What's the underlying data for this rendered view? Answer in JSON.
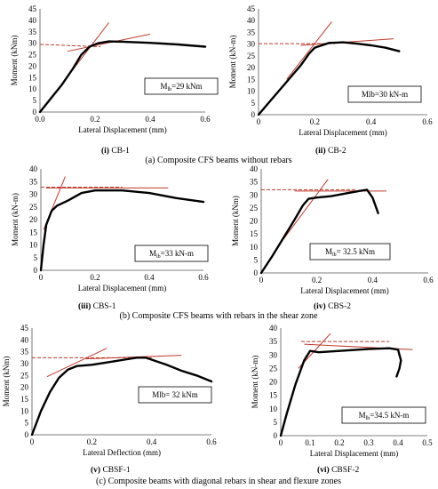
{
  "colors": {
    "curve": "#000000",
    "tangent": "#c0392b",
    "axis": "#555555",
    "grid_text": "#000000"
  },
  "row_captions": [
    "(a) Composite CFS beams without rebars",
    "(b) Composite CFS beams with rebars in the shear zone",
    "(c) Composite beams with diagonal rebars in shear and flexure zones"
  ],
  "chart_data": [
    {
      "type": "line",
      "caption": "(i) CB-1",
      "xlabel": "Lateral Displacement (mm)",
      "ylabel": "Moment (kNm)",
      "xlim": [
        0,
        0.6
      ],
      "ylim": [
        0,
        45
      ],
      "xticks": [
        "0.0",
        "0.2",
        "0.4",
        "0.6"
      ],
      "xtick_values": [
        0,
        0.2,
        0.4,
        0.6
      ],
      "yticks": [
        "0",
        "5",
        "10",
        "15",
        "20",
        "25",
        "30",
        "35",
        "40",
        "45"
      ],
      "ytick_values": [
        0,
        5,
        10,
        15,
        20,
        25,
        30,
        35,
        40,
        45
      ],
      "annotation": "M_lb=29 kNm",
      "curve": {
        "x": [
          0,
          0.04,
          0.08,
          0.12,
          0.15,
          0.18,
          0.21,
          0.25,
          0.3,
          0.4,
          0.5,
          0.6
        ],
        "y": [
          0,
          6,
          12,
          19,
          25,
          28.5,
          30,
          30.8,
          30.7,
          30.2,
          29.5,
          28.5
        ]
      },
      "tangent_lines": [
        {
          "x": [
            0.04,
            0.25
          ],
          "y": [
            6,
            39
          ],
          "style": "solid"
        },
        {
          "x": [
            0.1,
            0.4
          ],
          "y": [
            26.5,
            34
          ],
          "style": "solid"
        },
        {
          "x": [
            0,
            0.22
          ],
          "y": [
            29.5,
            28.5
          ],
          "style": "dashed"
        }
      ]
    },
    {
      "type": "line",
      "caption": "(ii) CB-2",
      "xlabel": "Lateral Displacement (mm)",
      "ylabel": "Moment (kN-m)",
      "xlim": [
        0,
        0.6
      ],
      "ylim": [
        0,
        45
      ],
      "xticks": [
        "0",
        "0.2",
        "0.4",
        "0.6"
      ],
      "xtick_values": [
        0,
        0.2,
        0.4,
        0.6
      ],
      "yticks": [
        "0",
        "5",
        "10",
        "15",
        "20",
        "25",
        "30",
        "35",
        "40",
        "45"
      ],
      "ytick_values": [
        0,
        5,
        10,
        15,
        20,
        25,
        30,
        35,
        40,
        45
      ],
      "annotation": "Mlb=30 kN-m",
      "curve": {
        "x": [
          0,
          0.05,
          0.1,
          0.15,
          0.18,
          0.2,
          0.25,
          0.3,
          0.35,
          0.4,
          0.45,
          0.5
        ],
        "y": [
          0,
          7,
          14,
          21,
          26,
          28.5,
          30.5,
          30.8,
          30.2,
          29.5,
          28.5,
          27
        ]
      },
      "tangent_lines": [
        {
          "x": [
            0.1,
            0.26
          ],
          "y": [
            15,
            39.5
          ],
          "style": "solid"
        },
        {
          "x": [
            0.15,
            0.48
          ],
          "y": [
            29.5,
            32.3
          ],
          "style": "solid"
        },
        {
          "x": [
            0,
            0.27
          ],
          "y": [
            30.2,
            30.2
          ],
          "style": "dashed"
        }
      ]
    },
    {
      "type": "line",
      "caption": "(iii) CBS-1",
      "xlabel": "Lateral Displacement (mm)",
      "ylabel": "Moment (kN-m)",
      "xlim": [
        0,
        0.6
      ],
      "ylim": [
        0,
        40
      ],
      "xticks": [
        "0",
        "0.2",
        "0.4",
        "0.6"
      ],
      "xtick_values": [
        0,
        0.2,
        0.4,
        0.6
      ],
      "yticks": [
        "0",
        "5",
        "10",
        "15",
        "20",
        "25",
        "30",
        "35",
        "40"
      ],
      "ytick_values": [
        0,
        5,
        10,
        15,
        20,
        25,
        30,
        35,
        40
      ],
      "annotation": "M_lb=33 kN-m",
      "curve": {
        "x": [
          0,
          0.01,
          0.02,
          0.04,
          0.06,
          0.1,
          0.15,
          0.2,
          0.3,
          0.4,
          0.5,
          0.6
        ],
        "y": [
          0,
          10,
          18,
          23.5,
          25.5,
          27.5,
          30.5,
          31.5,
          31.5,
          30.5,
          28.5,
          27
        ]
      },
      "tangent_lines": [
        {
          "x": [
            0.01,
            0.09
          ],
          "y": [
            16,
            37
          ],
          "style": "solid"
        },
        {
          "x": [
            0.02,
            0.47
          ],
          "y": [
            32.5,
            32.5
          ],
          "style": "solid"
        },
        {
          "x": [
            0,
            0.3
          ],
          "y": [
            32.8,
            32.8
          ],
          "style": "dashed"
        }
      ]
    },
    {
      "type": "line",
      "caption": "(iv) CBS-2",
      "xlabel": "Lateral Displacement (mm)",
      "ylabel": "Moment (kNm)",
      "xlim": [
        0,
        0.6
      ],
      "ylim": [
        0,
        40
      ],
      "xticks": [
        "0",
        "0.2",
        "0.4",
        "0.6"
      ],
      "xtick_values": [
        0,
        0.2,
        0.4,
        0.6
      ],
      "yticks": [
        "0",
        "5",
        "10",
        "15",
        "20",
        "25",
        "30",
        "35",
        "40"
      ],
      "ytick_values": [
        0,
        5,
        10,
        15,
        20,
        25,
        30,
        35,
        40
      ],
      "annotation": "M_lb= 32.5 kNm",
      "curve": {
        "x": [
          0,
          0.04,
          0.08,
          0.12,
          0.15,
          0.17,
          0.2,
          0.25,
          0.3,
          0.35,
          0.38,
          0.4,
          0.41,
          0.42
        ],
        "y": [
          0,
          6.5,
          13.5,
          20.5,
          26,
          28.5,
          29,
          29.5,
          30.5,
          31.5,
          32,
          29,
          26,
          23
        ]
      },
      "tangent_lines": [
        {
          "x": [
            0.08,
            0.24
          ],
          "y": [
            13,
            36
          ],
          "style": "solid"
        },
        {
          "x": [
            0.12,
            0.45
          ],
          "y": [
            31.5,
            31.5
          ],
          "style": "solid"
        },
        {
          "x": [
            0,
            0.34
          ],
          "y": [
            32,
            32
          ],
          "style": "dashed"
        }
      ]
    },
    {
      "type": "line",
      "caption": "(v) CBSF-1",
      "xlabel": "Lateral Deflection (mm)",
      "ylabel": "Moment (kNm)",
      "xlim": [
        0,
        0.6
      ],
      "ylim": [
        0,
        45
      ],
      "xticks": [
        "0",
        "0.2",
        "0.4",
        "0.6"
      ],
      "xtick_values": [
        0,
        0.2,
        0.4,
        0.6
      ],
      "yticks": [
        "0",
        "5",
        "10",
        "15",
        "20",
        "25",
        "30",
        "35",
        "40",
        "45"
      ],
      "ytick_values": [
        0,
        5,
        10,
        15,
        20,
        25,
        30,
        35,
        40,
        45
      ],
      "annotation": "Mlb= 32 kNm",
      "curve": {
        "x": [
          0,
          0.03,
          0.06,
          0.09,
          0.12,
          0.15,
          0.2,
          0.25,
          0.3,
          0.35,
          0.38,
          0.45,
          0.5,
          0.55,
          0.6
        ],
        "y": [
          0,
          10,
          18,
          24,
          27.5,
          29,
          29.5,
          30.5,
          31.5,
          32.5,
          32.5,
          29.5,
          27,
          25,
          22.5
        ]
      },
      "tangent_lines": [
        {
          "x": [
            0.05,
            0.25
          ],
          "y": [
            24.5,
            36.5
          ],
          "style": "solid"
        },
        {
          "x": [
            0.18,
            0.5
          ],
          "y": [
            32,
            33.5
          ],
          "style": "solid"
        },
        {
          "x": [
            0,
            0.4
          ],
          "y": [
            32.5,
            32.5
          ],
          "style": "dashed"
        }
      ]
    },
    {
      "type": "line",
      "caption": "(vi) CBSF-2",
      "xlabel": "Lateral Displacement (mm)",
      "ylabel": "Moment (kN-m)",
      "xlim": [
        0,
        0.5
      ],
      "ylim": [
        0,
        40
      ],
      "xticks": [
        "0",
        "0.1",
        "0.2",
        "0.3",
        "0.4",
        "0.5"
      ],
      "xtick_values": [
        0,
        0.1,
        0.2,
        0.3,
        0.4,
        0.5
      ],
      "yticks": [
        "0",
        "5",
        "10",
        "15",
        "20",
        "25",
        "30",
        "35",
        "40"
      ],
      "ytick_values": [
        0,
        5,
        10,
        15,
        20,
        25,
        30,
        35,
        40
      ],
      "annotation": "M_lb=34.5 kN-m",
      "curve": {
        "x": [
          0,
          0.02,
          0.05,
          0.08,
          0.1,
          0.13,
          0.2,
          0.3,
          0.37,
          0.4,
          0.41,
          0.405,
          0.395
        ],
        "y": [
          0,
          8,
          19,
          28,
          31.5,
          31,
          31.5,
          32.2,
          32.5,
          32,
          28,
          25,
          22
        ]
      },
      "tangent_lines": [
        {
          "x": [
            0.06,
            0.17
          ],
          "y": [
            25,
            38
          ],
          "style": "solid"
        },
        {
          "x": [
            0.08,
            0.45
          ],
          "y": [
            34,
            32
          ],
          "style": "solid"
        },
        {
          "x": [
            0.07,
            0.37
          ],
          "y": [
            35,
            35
          ],
          "style": "dashed"
        }
      ]
    }
  ]
}
